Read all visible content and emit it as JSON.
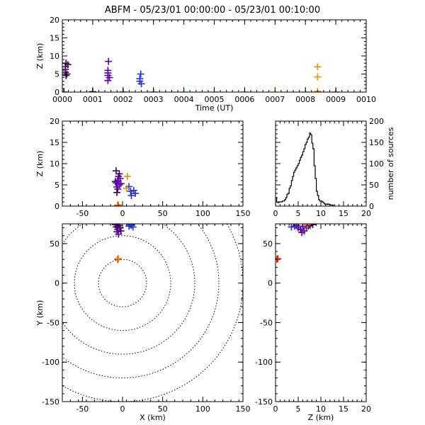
{
  "title": "ABFM - 05/23/01 00:00:00 - 05/23/01 00:10:00",
  "chart_data": [
    {
      "id": "time_height",
      "type": "scatter",
      "xlabel": "Time (UT)",
      "ylabel": "Z (km)",
      "xlim": [
        0,
        10
      ],
      "ylim": [
        0,
        20
      ],
      "xticks": [
        0,
        1,
        2,
        3,
        4,
        5,
        6,
        7,
        8,
        9,
        10
      ],
      "xticklabels": [
        "0000",
        "0001",
        "0002",
        "0003",
        "0004",
        "0005",
        "0006",
        "0007",
        "0008",
        "0009",
        "0010"
      ],
      "yticks": [
        0,
        5,
        10,
        15,
        20
      ],
      "points": [
        {
          "x": 0.05,
          "y": 0.0,
          "color": "#000000"
        },
        {
          "x": 0.1,
          "y": 5.5,
          "color": "#3c0050"
        },
        {
          "x": 0.1,
          "y": 6.3,
          "color": "#3c0050"
        },
        {
          "x": 0.1,
          "y": 7.0,
          "color": "#3c0050"
        },
        {
          "x": 0.12,
          "y": 8.0,
          "color": "#3c0050"
        },
        {
          "x": 0.12,
          "y": 4.6,
          "color": "#3c0050"
        },
        {
          "x": 0.15,
          "y": 5.0,
          "color": "#3c0050"
        },
        {
          "x": 0.18,
          "y": 7.6,
          "color": "#3c0050"
        },
        {
          "x": 1.0,
          "y": 0.1,
          "color": "#3c0050"
        },
        {
          "x": 1.5,
          "y": 4.6,
          "color": "#5a00a0"
        },
        {
          "x": 1.5,
          "y": 5.3,
          "color": "#5a00a0"
        },
        {
          "x": 1.5,
          "y": 6.0,
          "color": "#5a00a0"
        },
        {
          "x": 1.52,
          "y": 8.5,
          "color": "#5a00a0"
        },
        {
          "x": 1.5,
          "y": 3.2,
          "color": "#5a00a0"
        },
        {
          "x": 1.55,
          "y": 4.0,
          "color": "#5a00a0"
        },
        {
          "x": 2.0,
          "y": 0.0,
          "color": "#3c0096"
        },
        {
          "x": 2.55,
          "y": 3.0,
          "color": "#1e32dc"
        },
        {
          "x": 2.55,
          "y": 3.7,
          "color": "#1e32dc"
        },
        {
          "x": 2.58,
          "y": 5.0,
          "color": "#1e32dc"
        },
        {
          "x": 2.6,
          "y": 2.3,
          "color": "#1e32dc"
        },
        {
          "x": 3.0,
          "y": 0.0,
          "color": "#0064ff"
        },
        {
          "x": 4.0,
          "y": 0.0,
          "color": "#00ffff"
        },
        {
          "x": 5.0,
          "y": 0.0,
          "color": "#00e6c8"
        },
        {
          "x": 6.0,
          "y": 0.0,
          "color": "#00dc00"
        },
        {
          "x": 7.0,
          "y": 0.0,
          "color": "#dcf000"
        },
        {
          "x": 8.0,
          "y": 0.0,
          "color": "#f0c800"
        },
        {
          "x": 8.4,
          "y": 7.0,
          "color": "#f08c00"
        },
        {
          "x": 8.4,
          "y": 4.2,
          "color": "#f08c00"
        },
        {
          "x": 8.4,
          "y": 0.2,
          "color": "#f08c00"
        },
        {
          "x": 9.0,
          "y": 0.0,
          "color": "#f01e00"
        }
      ]
    },
    {
      "id": "xz",
      "type": "scatter",
      "xlabel": "",
      "ylabel": "Z (km)",
      "xlim": [
        -75,
        150
      ],
      "ylim": [
        0,
        20
      ],
      "xticks": [
        -50,
        0,
        50,
        100,
        150
      ],
      "yticks": [
        0,
        5,
        10,
        15,
        20
      ],
      "points": [
        {
          "x": -8,
          "y": 5.5,
          "color": "#5a00a0"
        },
        {
          "x": -6,
          "y": 6.0,
          "color": "#5a00a0"
        },
        {
          "x": -4,
          "y": 5.0,
          "color": "#5a00a0"
        },
        {
          "x": -7,
          "y": 4.5,
          "color": "#5a00a0"
        },
        {
          "x": -3,
          "y": 6.5,
          "color": "#5a00a0"
        },
        {
          "x": -5,
          "y": 7.0,
          "color": "#5a00a0"
        },
        {
          "x": -9,
          "y": 5.8,
          "color": "#5a00a0"
        },
        {
          "x": -2,
          "y": 5.3,
          "color": "#5a00a0"
        },
        {
          "x": -6,
          "y": 4.0,
          "color": "#5a00a0"
        },
        {
          "x": -8,
          "y": 8.3,
          "color": "#3c0050"
        },
        {
          "x": -4,
          "y": 7.6,
          "color": "#3c0050"
        },
        {
          "x": -7,
          "y": 3.2,
          "color": "#3c0050"
        },
        {
          "x": 8,
          "y": 4.6,
          "color": "#1e32dc"
        },
        {
          "x": 10,
          "y": 3.5,
          "color": "#1e32dc"
        },
        {
          "x": 14,
          "y": 3.7,
          "color": "#1e32dc"
        },
        {
          "x": 11,
          "y": 2.5,
          "color": "#1e32dc"
        },
        {
          "x": 16,
          "y": 3.0,
          "color": "#1e32dc"
        },
        {
          "x": 6,
          "y": 7.0,
          "color": "#f08c00"
        },
        {
          "x": 5,
          "y": 4.2,
          "color": "#f08c00"
        },
        {
          "x": -6,
          "y": 0.2,
          "color": "#f01e00"
        },
        {
          "x": -5,
          "y": 0.3,
          "color": "#f08c00"
        }
      ]
    },
    {
      "id": "height_histogram",
      "type": "bar",
      "xlabel": "",
      "ylabel": "number of sources",
      "xlim": [
        0,
        20
      ],
      "ylim": [
        0,
        200
      ],
      "xticks": [
        0,
        5,
        10,
        15,
        20
      ],
      "yticks": [
        0,
        50,
        100,
        150,
        200
      ],
      "bin_width": 0.25,
      "bin_starts": [
        0,
        0.25,
        0.5,
        0.75,
        1,
        1.25,
        1.5,
        1.75,
        2,
        2.25,
        2.5,
        2.75,
        3,
        3.25,
        3.5,
        3.75,
        4,
        4.25,
        4.5,
        4.75,
        5,
        5.25,
        5.5,
        5.75,
        6,
        6.25,
        6.5,
        6.75,
        7,
        7.25,
        7.5,
        7.75,
        8,
        8.25,
        8.5,
        8.75,
        9,
        9.25,
        9.5,
        9.75,
        10,
        10.25,
        10.5,
        10.75,
        11,
        11.25,
        11.5,
        11.75,
        12,
        12.25,
        12.5
      ],
      "values": [
        20,
        10,
        8,
        10,
        10,
        10,
        12,
        12,
        15,
        20,
        28,
        30,
        42,
        48,
        60,
        70,
        80,
        85,
        90,
        95,
        100,
        108,
        115,
        120,
        128,
        135,
        145,
        150,
        158,
        162,
        172,
        168,
        148,
        135,
        95,
        65,
        35,
        25,
        15,
        12,
        12,
        10,
        8,
        5,
        5,
        4,
        5,
        4,
        3,
        3,
        2
      ]
    },
    {
      "id": "plan",
      "type": "scatter",
      "xlabel": "X (km)",
      "ylabel": "Y (km)",
      "xlim": [
        -75,
        150
      ],
      "ylim": [
        -150,
        75
      ],
      "xticks": [
        -50,
        0,
        50,
        100,
        150
      ],
      "yticks": [
        -150,
        -100,
        -50,
        0,
        50
      ],
      "range_rings_km": [
        30,
        60,
        90,
        120,
        150
      ],
      "points": [
        {
          "x": -8,
          "y": 71,
          "color": "#5a00a0"
        },
        {
          "x": -6,
          "y": 68,
          "color": "#5a00a0"
        },
        {
          "x": -4,
          "y": 73,
          "color": "#5a00a0"
        },
        {
          "x": -7,
          "y": 65,
          "color": "#5a00a0"
        },
        {
          "x": -3,
          "y": 70,
          "color": "#5a00a0"
        },
        {
          "x": -9,
          "y": 74,
          "color": "#5a00a0"
        },
        {
          "x": -5,
          "y": 62,
          "color": "#5a00a0"
        },
        {
          "x": -2,
          "y": 66,
          "color": "#3c0050"
        },
        {
          "x": -6,
          "y": 72,
          "color": "#3c0050"
        },
        {
          "x": 8,
          "y": 72,
          "color": "#1e32dc"
        },
        {
          "x": 10,
          "y": 74,
          "color": "#1e32dc"
        },
        {
          "x": 13,
          "y": 71,
          "color": "#1e32dc"
        },
        {
          "x": 11,
          "y": 73,
          "color": "#1e32dc"
        },
        {
          "x": -6,
          "y": 30,
          "color": "#f01e00"
        },
        {
          "x": -5,
          "y": 31,
          "color": "#f08c00"
        }
      ]
    },
    {
      "id": "zy",
      "type": "scatter",
      "xlabel": "Z (km)",
      "ylabel": "",
      "xlim": [
        0,
        20
      ],
      "ylim": [
        -150,
        75
      ],
      "xticks": [
        0,
        5,
        10,
        15,
        20
      ],
      "yticks": [
        -150,
        -100,
        -50,
        0,
        50
      ],
      "points": [
        {
          "x": 3.5,
          "y": 71,
          "color": "#1e32dc"
        },
        {
          "x": 4.2,
          "y": 72,
          "color": "#1e32dc"
        },
        {
          "x": 5.0,
          "y": 70,
          "color": "#5a00a0"
        },
        {
          "x": 5.5,
          "y": 68,
          "color": "#5a00a0"
        },
        {
          "x": 6.0,
          "y": 72,
          "color": "#5a00a0"
        },
        {
          "x": 6.3,
          "y": 66,
          "color": "#5a00a0"
        },
        {
          "x": 5.8,
          "y": 64,
          "color": "#5a00a0"
        },
        {
          "x": 6.8,
          "y": 70,
          "color": "#5a00a0"
        },
        {
          "x": 7.2,
          "y": 72,
          "color": "#5a00a0"
        },
        {
          "x": 4.6,
          "y": 73,
          "color": "#5a00a0"
        },
        {
          "x": 7.6,
          "y": 73,
          "color": "#3c0050"
        },
        {
          "x": 8.2,
          "y": 74,
          "color": "#3c0050"
        },
        {
          "x": 7.0,
          "y": 74,
          "color": "#f08c00"
        },
        {
          "x": 0.3,
          "y": 30,
          "color": "#f01e00"
        },
        {
          "x": 0.5,
          "y": 31,
          "color": "#f01e00"
        }
      ]
    }
  ]
}
